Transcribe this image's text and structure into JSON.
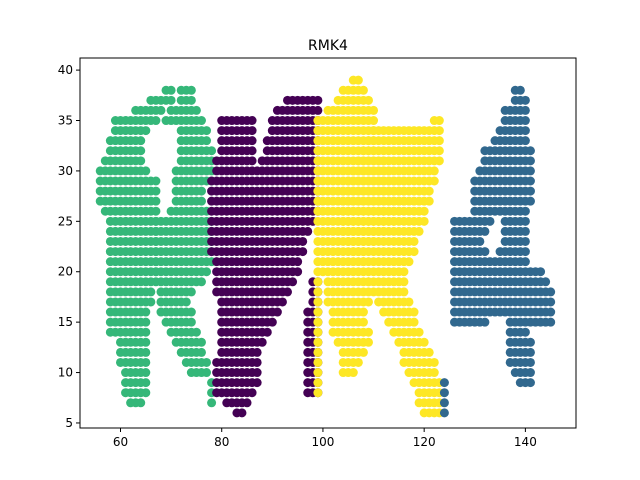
{
  "chart_data": {
    "type": "scatter",
    "title": "RMK4",
    "xlabel": "",
    "ylabel": "",
    "xlim": [
      52,
      150
    ],
    "ylim": [
      4.5,
      41.2
    ],
    "xticks": [
      "60",
      "80",
      "100",
      "120",
      "140"
    ],
    "yticks": [
      "5",
      "10",
      "15",
      "20",
      "25",
      "30",
      "35",
      "40"
    ],
    "grid": false,
    "legend": "none",
    "colors": {
      "green": "#35b779",
      "purple": "#440154",
      "yellow": "#fde725",
      "blue": "#31688e"
    },
    "series": [
      {
        "color": "#35b779",
        "rows": [
          [
            7,
            62,
            64
          ],
          [
            8,
            61,
            65
          ],
          [
            9,
            61,
            65
          ],
          [
            10,
            61,
            65
          ],
          [
            11,
            60,
            65
          ],
          [
            12,
            60,
            65
          ],
          [
            13,
            60,
            65
          ],
          [
            14,
            58,
            65
          ],
          [
            15,
            58,
            65
          ],
          [
            16,
            58,
            65
          ],
          [
            17,
            58,
            66
          ],
          [
            18,
            58,
            66
          ],
          [
            19,
            58,
            66
          ],
          [
            20,
            58,
            67
          ],
          [
            21,
            58,
            67
          ],
          [
            22,
            58,
            67
          ],
          [
            23,
            58,
            67
          ],
          [
            24,
            58,
            67
          ],
          [
            25,
            58,
            67
          ],
          [
            26,
            57,
            67
          ],
          [
            27,
            56,
            67
          ],
          [
            28,
            56,
            67
          ],
          [
            29,
            56,
            67
          ],
          [
            30,
            56,
            65
          ],
          [
            31,
            57,
            64
          ],
          [
            32,
            58,
            64
          ],
          [
            33,
            58,
            64
          ],
          [
            34,
            59,
            65
          ],
          [
            35,
            59,
            67
          ],
          [
            36,
            63,
            68
          ],
          [
            37,
            66,
            70
          ],
          [
            38,
            69,
            70
          ],
          [
            7,
            78,
            78
          ],
          [
            8,
            78,
            78
          ],
          [
            9,
            78,
            78
          ],
          [
            10,
            74,
            77
          ],
          [
            11,
            73,
            77
          ],
          [
            12,
            72,
            76
          ],
          [
            13,
            71,
            76
          ],
          [
            14,
            70,
            75
          ],
          [
            15,
            69,
            74
          ],
          [
            16,
            68,
            74
          ],
          [
            17,
            68,
            73
          ],
          [
            18,
            68,
            74
          ],
          [
            19,
            67,
            76
          ],
          [
            20,
            67,
            77
          ],
          [
            21,
            67,
            78
          ],
          [
            22,
            67,
            78
          ],
          [
            23,
            67,
            78
          ],
          [
            24,
            67,
            78
          ],
          [
            25,
            67,
            78
          ],
          [
            26,
            70,
            77
          ],
          [
            27,
            71,
            76
          ],
          [
            28,
            71,
            76
          ],
          [
            29,
            71,
            78
          ],
          [
            30,
            71,
            78
          ],
          [
            31,
            72,
            78
          ],
          [
            32,
            72,
            78
          ],
          [
            33,
            72,
            77
          ],
          [
            34,
            72,
            77
          ],
          [
            35,
            69,
            76
          ],
          [
            36,
            70,
            75
          ],
          [
            37,
            72,
            74
          ],
          [
            38,
            72,
            74
          ]
        ]
      },
      {
        "color": "#440154",
        "rows": [
          [
            6,
            83,
            84
          ],
          [
            7,
            81,
            85
          ],
          [
            8,
            79,
            86
          ],
          [
            9,
            79,
            87
          ],
          [
            10,
            79,
            87
          ],
          [
            11,
            79,
            87
          ],
          [
            12,
            80,
            87
          ],
          [
            13,
            80,
            88
          ],
          [
            14,
            80,
            89
          ],
          [
            15,
            80,
            90
          ],
          [
            16,
            80,
            91
          ],
          [
            17,
            80,
            92
          ],
          [
            18,
            79,
            93
          ],
          [
            19,
            79,
            94
          ],
          [
            20,
            79,
            95
          ],
          [
            21,
            79,
            95
          ],
          [
            22,
            78,
            96
          ],
          [
            23,
            78,
            96
          ],
          [
            24,
            78,
            97
          ],
          [
            25,
            78,
            98
          ],
          [
            26,
            78,
            99
          ],
          [
            27,
            78,
            99
          ],
          [
            28,
            78,
            99
          ],
          [
            29,
            78,
            99
          ],
          [
            30,
            79,
            87
          ],
          [
            31,
            79,
            86
          ],
          [
            32,
            80,
            86
          ],
          [
            33,
            80,
            86
          ],
          [
            34,
            80,
            86
          ],
          [
            35,
            80,
            86
          ],
          [
            36,
            91,
            99
          ],
          [
            37,
            93,
            99
          ],
          [
            8,
            97,
            99
          ],
          [
            9,
            97,
            99
          ],
          [
            10,
            97,
            99
          ],
          [
            11,
            97,
            99
          ],
          [
            12,
            97,
            99
          ],
          [
            13,
            97,
            99
          ],
          [
            14,
            97,
            99
          ],
          [
            15,
            97,
            99
          ],
          [
            16,
            97,
            99
          ],
          [
            17,
            98,
            99
          ],
          [
            18,
            98,
            99
          ],
          [
            19,
            98,
            99
          ],
          [
            30,
            88,
            99
          ],
          [
            31,
            88,
            99
          ],
          [
            32,
            89,
            99
          ],
          [
            33,
            89,
            99
          ],
          [
            34,
            90,
            99
          ],
          [
            35,
            90,
            99
          ]
        ]
      },
      {
        "color": "#fde725",
        "rows": [
          [
            6,
            120,
            123
          ],
          [
            7,
            119,
            123
          ],
          [
            8,
            119,
            123
          ],
          [
            9,
            118,
            123
          ],
          [
            10,
            117,
            122
          ],
          [
            11,
            116,
            122
          ],
          [
            12,
            116,
            121
          ],
          [
            13,
            115,
            120
          ],
          [
            14,
            114,
            119
          ],
          [
            15,
            113,
            118
          ],
          [
            16,
            112,
            118
          ],
          [
            17,
            111,
            117
          ],
          [
            18,
            110,
            116
          ],
          [
            19,
            109,
            116
          ],
          [
            20,
            108,
            116
          ],
          [
            21,
            108,
            117
          ],
          [
            22,
            106,
            118
          ],
          [
            23,
            105,
            118
          ],
          [
            24,
            104,
            119
          ],
          [
            25,
            104,
            120
          ],
          [
            26,
            104,
            120
          ],
          [
            27,
            104,
            121
          ],
          [
            28,
            104,
            121
          ],
          [
            29,
            105,
            122
          ],
          [
            30,
            106,
            122
          ],
          [
            31,
            107,
            123
          ],
          [
            32,
            108,
            123
          ],
          [
            33,
            109,
            123
          ],
          [
            34,
            110,
            123
          ],
          [
            35,
            122,
            123
          ],
          [
            8,
            99,
            99
          ],
          [
            9,
            99,
            99
          ],
          [
            10,
            99,
            99
          ],
          [
            11,
            99,
            99
          ],
          [
            12,
            99,
            99
          ],
          [
            13,
            99,
            99
          ],
          [
            14,
            99,
            99
          ],
          [
            15,
            99,
            99
          ],
          [
            16,
            99,
            99
          ],
          [
            17,
            99,
            99
          ],
          [
            18,
            99,
            99
          ],
          [
            19,
            99,
            99
          ],
          [
            20,
            99,
            107
          ],
          [
            21,
            99,
            108
          ],
          [
            22,
            99,
            108
          ],
          [
            23,
            99,
            110
          ],
          [
            24,
            99,
            112
          ],
          [
            25,
            99,
            114
          ],
          [
            26,
            99,
            115
          ],
          [
            27,
            99,
            116
          ],
          [
            28,
            99,
            116
          ],
          [
            29,
            99,
            116
          ],
          [
            30,
            99,
            113
          ],
          [
            31,
            99,
            112
          ],
          [
            32,
            99,
            110
          ],
          [
            33,
            99,
            110
          ],
          [
            34,
            99,
            110
          ],
          [
            35,
            99,
            110
          ],
          [
            36,
            101,
            110
          ],
          [
            37,
            103,
            109
          ],
          [
            38,
            104,
            108
          ],
          [
            39,
            106,
            107
          ],
          [
            10,
            104,
            106
          ],
          [
            11,
            104,
            107
          ],
          [
            12,
            104,
            108
          ],
          [
            13,
            103,
            109
          ],
          [
            14,
            102,
            109
          ],
          [
            15,
            102,
            108
          ],
          [
            16,
            102,
            108
          ],
          [
            17,
            101,
            109
          ],
          [
            18,
            101,
            109
          ],
          [
            19,
            101,
            109
          ]
        ]
      },
      {
        "color": "#31688e",
        "rows": [
          [
            6,
            124,
            124
          ],
          [
            7,
            124,
            124
          ],
          [
            8,
            124,
            124
          ],
          [
            9,
            124,
            124
          ],
          [
            9,
            139,
            141
          ],
          [
            10,
            138,
            141
          ],
          [
            11,
            137,
            141
          ],
          [
            12,
            137,
            141
          ],
          [
            13,
            137,
            141
          ],
          [
            14,
            137,
            140
          ],
          [
            15,
            126,
            132
          ],
          [
            15,
            137,
            145
          ],
          [
            16,
            126,
            145
          ],
          [
            17,
            126,
            145
          ],
          [
            18,
            126,
            145
          ],
          [
            19,
            126,
            144
          ],
          [
            20,
            126,
            143
          ],
          [
            21,
            126,
            140
          ],
          [
            22,
            126,
            132
          ],
          [
            22,
            135,
            140
          ],
          [
            23,
            126,
            131
          ],
          [
            23,
            136,
            140
          ],
          [
            24,
            126,
            132
          ],
          [
            24,
            136,
            140
          ],
          [
            25,
            126,
            133
          ],
          [
            25,
            136,
            140
          ],
          [
            26,
            130,
            140
          ],
          [
            27,
            130,
            141
          ],
          [
            28,
            130,
            141
          ],
          [
            29,
            130,
            141
          ],
          [
            30,
            131,
            141
          ],
          [
            31,
            132,
            141
          ],
          [
            32,
            132,
            141
          ],
          [
            33,
            134,
            140
          ],
          [
            34,
            135,
            140
          ],
          [
            35,
            136,
            140
          ],
          [
            36,
            136,
            140
          ],
          [
            37,
            138,
            140
          ],
          [
            38,
            138,
            139
          ]
        ]
      }
    ]
  }
}
